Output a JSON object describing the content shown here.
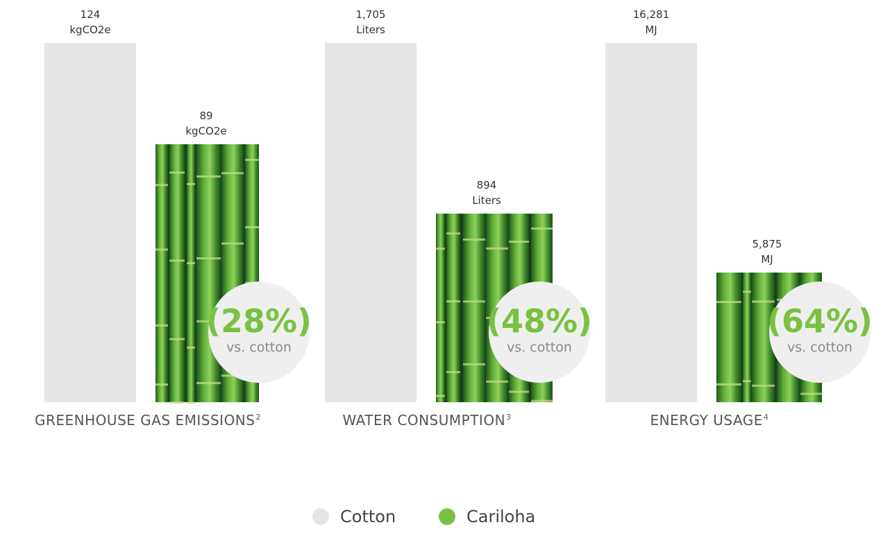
{
  "chart_data": {
    "type": "bar",
    "categories": [
      "GREENHOUSE GAS EMISSIONS",
      "WATER CONSUMPTION",
      "ENERGY USAGE"
    ],
    "category_footnotes": [
      "2",
      "3",
      "4"
    ],
    "series": [
      {
        "name": "Cotton",
        "color": "#e5e5e5",
        "values": [
          124,
          1705,
          16281
        ],
        "labels": [
          "124",
          "1,705",
          "16,281"
        ]
      },
      {
        "name": "Cariloha",
        "color": "#7ac143",
        "values": [
          89,
          894,
          5875
        ],
        "labels": [
          "89",
          "894",
          "5,875"
        ]
      }
    ],
    "units": [
      "kgCO2e",
      "Liters",
      "MJ"
    ],
    "reductions": [
      "(28%)",
      "(48%)",
      "(64%)"
    ],
    "reduction_caption": "vs. cotton",
    "legend_position": "bottom-center",
    "grid": false,
    "fill": "bamboo-photo"
  }
}
